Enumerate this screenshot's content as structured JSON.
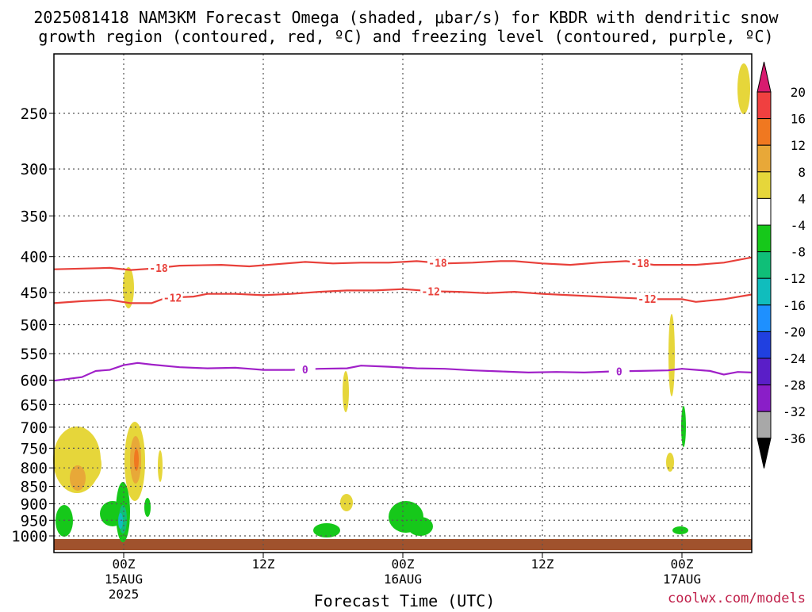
{
  "chart_data": {
    "type": "time-height",
    "title_line1": "2025081418 NAM3KM Forecast Omega (shaded, μbar/s) for KBDR with dendritic snow",
    "title_line2": "growth region (contoured, red, ºC) and freezing level (contoured, purple, ºC)",
    "xlabel": "Forecast Time (UTC)",
    "credit": "coolwx.com/models",
    "xlim_hours": [
      -5,
      45
    ],
    "x_ticks": [
      {
        "hour": 0,
        "label": "00Z",
        "date": "15AUG",
        "year": "2025"
      },
      {
        "hour": 10,
        "label": "12Z",
        "date": "",
        "year": ""
      },
      {
        "hour": 20,
        "label": "00Z",
        "date": "16AUG",
        "year": ""
      },
      {
        "hour": 30,
        "label": "12Z",
        "date": "",
        "year": ""
      },
      {
        "hour": 40,
        "label": "00Z",
        "date": "17AUG",
        "year": ""
      }
    ],
    "y_ticks": [
      "250",
      "300",
      "350",
      "400",
      "450",
      "500",
      "550",
      "600",
      "650",
      "700",
      "750",
      "800",
      "850",
      "900",
      "950",
      "1000"
    ],
    "colorbar": {
      "labels": [
        "20",
        "16",
        "12",
        "8",
        "4",
        "-4",
        "-8",
        "-12",
        "-16",
        "-20",
        "-24",
        "-28",
        "-32",
        "-36"
      ],
      "colors": [
        "#d81b6f",
        "#f04040",
        "#f07820",
        "#e8a838",
        "#e6d63a",
        "#ffffff",
        "#16c81a",
        "#0fbf78",
        "#10bdbd",
        "#1e90ff",
        "#2040e0",
        "#5a1ec8",
        "#8a1ec8",
        "#a8a8a8",
        "#000000"
      ]
    },
    "contour_labels": {
      "dgz_upper": "-18",
      "dgz_lower": "-12",
      "freezing": "0"
    },
    "series": [
      {
        "contour": "dgz_upper",
        "color": "#e8403a",
        "points": [
          [
            -5,
            417
          ],
          [
            -3,
            416
          ],
          [
            -1,
            415
          ],
          [
            0.5,
            418
          ],
          [
            2,
            416
          ],
          [
            4,
            412
          ],
          [
            7,
            411
          ],
          [
            9,
            413
          ],
          [
            11,
            410
          ],
          [
            13,
            407
          ],
          [
            15,
            409
          ],
          [
            17,
            408
          ],
          [
            19,
            408
          ],
          [
            21,
            406
          ],
          [
            23,
            409
          ],
          [
            25,
            408
          ],
          [
            27,
            406
          ],
          [
            28,
            406
          ],
          [
            30,
            409
          ],
          [
            32,
            411
          ],
          [
            34,
            408
          ],
          [
            36,
            406
          ],
          [
            38,
            411
          ],
          [
            40,
            411
          ],
          [
            41,
            411
          ],
          [
            43,
            408
          ],
          [
            45,
            401
          ]
        ],
        "label_hours": [
          2.5,
          22.5,
          37
        ]
      },
      {
        "contour": "dgz_lower",
        "color": "#e8403a",
        "points": [
          [
            -5,
            466
          ],
          [
            -3,
            463
          ],
          [
            -1,
            461
          ],
          [
            0.5,
            466
          ],
          [
            2,
            466
          ],
          [
            3,
            458
          ],
          [
            5,
            456
          ],
          [
            6,
            452
          ],
          [
            8,
            452
          ],
          [
            10,
            454
          ],
          [
            12,
            452
          ],
          [
            14,
            449
          ],
          [
            16,
            447
          ],
          [
            18,
            447
          ],
          [
            20,
            445
          ],
          [
            22,
            448
          ],
          [
            24,
            449
          ],
          [
            26,
            451
          ],
          [
            28,
            449
          ],
          [
            30,
            452
          ],
          [
            32,
            454
          ],
          [
            34,
            456
          ],
          [
            36,
            458
          ],
          [
            38,
            460
          ],
          [
            40,
            460
          ],
          [
            41,
            464
          ],
          [
            43,
            460
          ],
          [
            45,
            453
          ]
        ],
        "label_hours": [
          3.5,
          22,
          37.5
        ]
      },
      {
        "contour": "freezing",
        "color": "#a020c8",
        "points": [
          [
            -5,
            601
          ],
          [
            -3,
            594
          ],
          [
            -2,
            582
          ],
          [
            -1,
            580
          ],
          [
            0,
            571
          ],
          [
            1,
            567
          ],
          [
            2,
            570
          ],
          [
            4,
            575
          ],
          [
            6,
            577
          ],
          [
            8,
            576
          ],
          [
            9,
            578
          ],
          [
            10,
            580
          ],
          [
            12,
            580
          ],
          [
            14,
            578
          ],
          [
            16,
            577
          ],
          [
            17,
            572
          ],
          [
            19,
            574
          ],
          [
            21,
            577
          ],
          [
            23,
            578
          ],
          [
            25,
            581
          ],
          [
            27,
            583
          ],
          [
            29,
            585
          ],
          [
            31,
            584
          ],
          [
            33,
            585
          ],
          [
            35,
            583
          ],
          [
            37,
            582
          ],
          [
            39,
            581
          ],
          [
            40,
            578
          ],
          [
            42,
            582
          ],
          [
            43,
            589
          ],
          [
            44,
            584
          ],
          [
            45,
            585
          ]
        ],
        "label_hours": [
          13,
          35.5
        ]
      }
    ]
  }
}
